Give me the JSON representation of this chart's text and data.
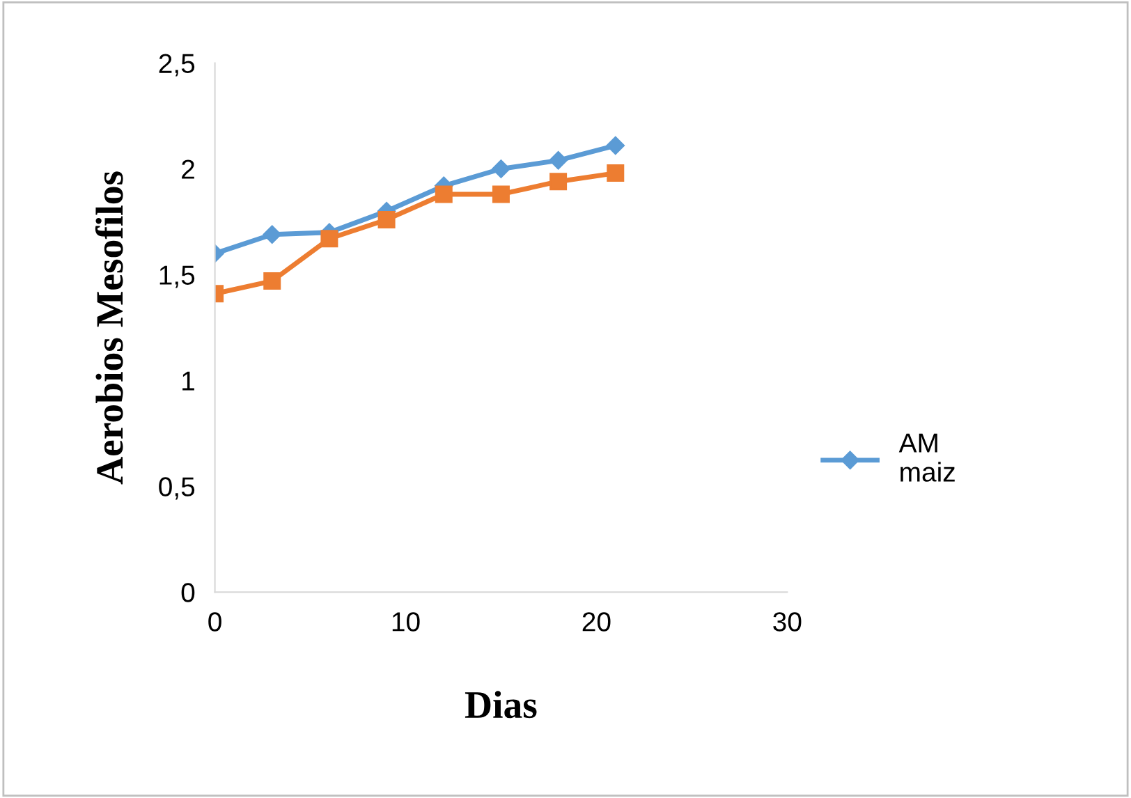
{
  "chart_data": {
    "type": "line",
    "xlabel": "Dias",
    "ylabel": "Aerobios Mesofilos",
    "x": [
      0,
      3,
      6,
      9,
      12,
      15,
      18,
      21
    ],
    "series": [
      {
        "name": "AM\nmaiz",
        "color": "#5b9bd5",
        "marker": "diamond",
        "values": [
          1.6,
          1.69,
          1.7,
          1.8,
          1.92,
          2.0,
          2.04,
          2.11
        ]
      },
      {
        "color": "#ed7d31",
        "marker": "square",
        "values": [
          1.41,
          1.47,
          1.67,
          1.76,
          1.88,
          1.88,
          1.94,
          1.98
        ]
      }
    ],
    "xlim": [
      0,
      30
    ],
    "xticks": [
      0,
      10,
      20,
      30
    ],
    "ylim": [
      0,
      2.5
    ],
    "yticks": [
      0,
      {
        "value": 0.5,
        "label": "0,5"
      },
      1,
      {
        "value": 1.5,
        "label": "1,5"
      },
      2,
      {
        "value": 2.5,
        "label": "2,5"
      }
    ],
    "grid": false,
    "legend": "right"
  }
}
